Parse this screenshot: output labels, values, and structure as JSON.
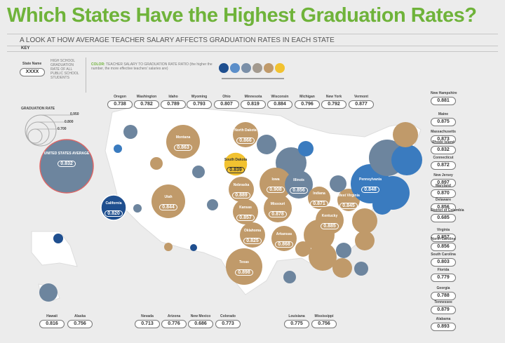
{
  "title": "Which States Have the Highest Graduation Rates?",
  "subtitle": "A LOOK AT HOW AVERAGE TEACHER SALARY AFFECTS GRADUATION RATES IN EACH STATE",
  "key": {
    "label": "KEY",
    "state_name_label": "State Name",
    "state_name_value": "XXXX",
    "description": "HIGH SCHOOL GRADUATION RATE OF ALL PUBLIC SCHOOL STUDENTS",
    "color_heading": "COLOR:",
    "color_text": "TEACHER SALARY TO GRADUATION RATE RATIO (the higher the number, the more effective teachers' salaries are)",
    "swatches": [
      "#1f4f8f",
      "#5b8ec9",
      "#7a8fa8",
      "#a39a8f",
      "#c09a6a",
      "#f2c230"
    ],
    "grad_rate_label": "GRADUATION RATE",
    "grad_rate_ticks": [
      "0.950",
      "0.800",
      "0.700"
    ]
  },
  "us_average": {
    "label": "UNITED STATES AVERAGE",
    "value": "0.832"
  },
  "colors": {
    "gold": "#c09a6a",
    "blue_dark": "#1f4f8f",
    "blue_mid": "#3a7bbf",
    "slate": "#6d859e",
    "yellow": "#f2c230",
    "title_green": "#6fb33a"
  },
  "states_top": [
    {
      "name": "Oregon",
      "value": "0.738"
    },
    {
      "name": "Washington",
      "value": "0.782"
    },
    {
      "name": "Idaho",
      "value": "0.789"
    },
    {
      "name": "Wyoming",
      "value": "0.793"
    },
    {
      "name": "Ohio",
      "value": "0.807"
    },
    {
      "name": "Minnesota",
      "value": "0.819"
    },
    {
      "name": "Wisconsin",
      "value": "0.884"
    },
    {
      "name": "Michigan",
      "value": "0.796"
    },
    {
      "name": "New York",
      "value": "0.792"
    },
    {
      "name": "Vermont",
      "value": "0.877"
    }
  ],
  "states_right": [
    {
      "name": "New Hampshire",
      "value": "0.881"
    },
    {
      "name": "Maine",
      "value": "0.875"
    },
    {
      "name": "Massachusetts",
      "value": "0.873"
    },
    {
      "name": "Rhode Island",
      "value": "0.832"
    },
    {
      "name": "Connecticut",
      "value": "0.872"
    },
    {
      "name": "New Jersey",
      "value": "0.897"
    },
    {
      "name": "Maryland",
      "value": "0.870"
    },
    {
      "name": "Delaware",
      "value": "0.856"
    },
    {
      "name": "District of Columbia",
      "value": "0.685"
    },
    {
      "name": "Virginia",
      "value": "0.857"
    },
    {
      "name": "North Carolina",
      "value": "0.856"
    },
    {
      "name": "South Carolina",
      "value": "0.803"
    },
    {
      "name": "Florida",
      "value": "0.779"
    },
    {
      "name": "Georgia",
      "value": "0.788"
    },
    {
      "name": "Tennessee",
      "value": "0.879"
    },
    {
      "name": "Alabama",
      "value": "0.893"
    }
  ],
  "states_bottom": [
    {
      "name": "Hawaii",
      "value": "0.816"
    },
    {
      "name": "Alaska",
      "value": "0.756"
    },
    {
      "name": "Nevada",
      "value": "0.713"
    },
    {
      "name": "Arizona",
      "value": "0.776"
    },
    {
      "name": "New Mexico",
      "value": "0.686"
    },
    {
      "name": "Colorado",
      "value": "0.773"
    },
    {
      "name": "Louisiana",
      "value": "0.775"
    },
    {
      "name": "Mississippi",
      "value": "0.756"
    }
  ],
  "map_bubbles": [
    {
      "name": "Montana",
      "value": "0.863"
    },
    {
      "name": "North Dakota",
      "value": "0.866"
    },
    {
      "name": "South Dakota",
      "value": "0.839"
    },
    {
      "name": "Utah",
      "value": "0.844"
    },
    {
      "name": "California",
      "value": "0.820"
    },
    {
      "name": "Nebraska",
      "value": "0.889"
    },
    {
      "name": "Iowa",
      "value": "0.908"
    },
    {
      "name": "Kansas",
      "value": "0.857"
    },
    {
      "name": "Missouri",
      "value": "0.878"
    },
    {
      "name": "Illinois",
      "value": "0.856"
    },
    {
      "name": "Indiana",
      "value": "0.871"
    },
    {
      "name": "West Virginia",
      "value": "0.845"
    },
    {
      "name": "Pennsylvania",
      "value": "0.848"
    },
    {
      "name": "Kentucky",
      "value": "0.885"
    },
    {
      "name": "Oklahoma",
      "value": "0.825"
    },
    {
      "name": "Arkansas",
      "value": "0.868"
    },
    {
      "name": "Texas",
      "value": "0.898"
    }
  ]
}
